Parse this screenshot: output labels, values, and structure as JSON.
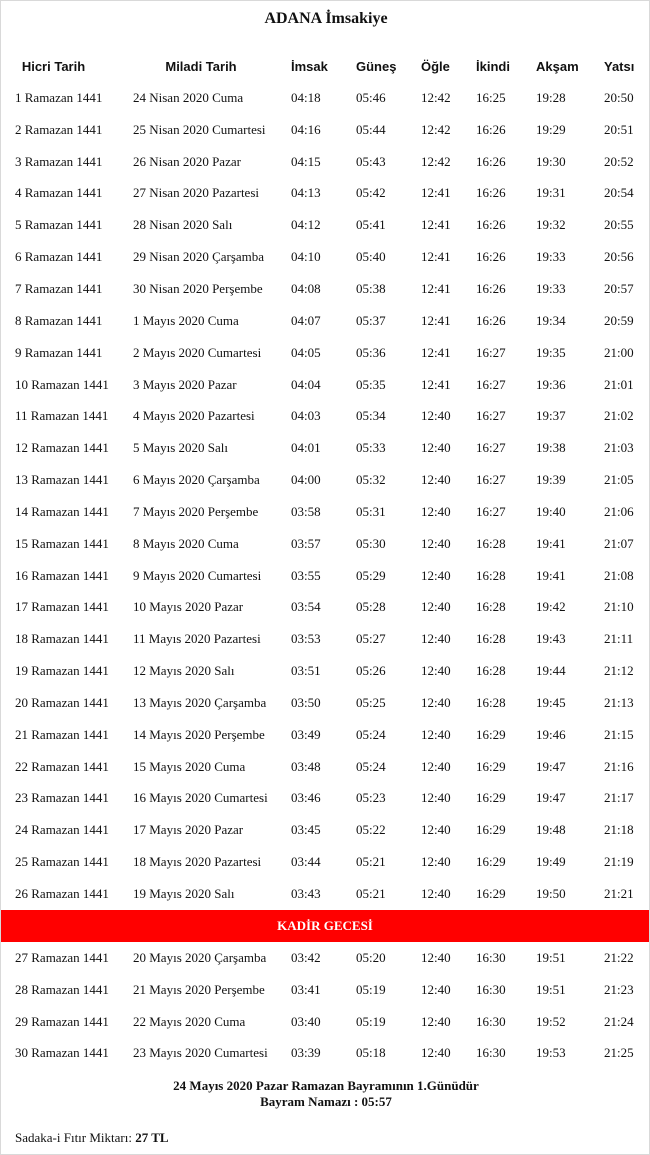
{
  "title": "ADANA İmsakiye",
  "headers": [
    "Hicri Tarih",
    "Miladi Tarih",
    "İmsak",
    "Güneş",
    "Öğle",
    "İkindi",
    "Akşam",
    "Yatsı"
  ],
  "rows_before": [
    [
      "1 Ramazan 1441",
      "24 Nisan 2020 Cuma",
      "04:18",
      "05:46",
      "12:42",
      "16:25",
      "19:28",
      "20:50"
    ],
    [
      "2 Ramazan 1441",
      "25 Nisan 2020 Cumartesi",
      "04:16",
      "05:44",
      "12:42",
      "16:26",
      "19:29",
      "20:51"
    ],
    [
      "3 Ramazan 1441",
      "26 Nisan 2020 Pazar",
      "04:15",
      "05:43",
      "12:42",
      "16:26",
      "19:30",
      "20:52"
    ],
    [
      "4 Ramazan 1441",
      "27 Nisan 2020 Pazartesi",
      "04:13",
      "05:42",
      "12:41",
      "16:26",
      "19:31",
      "20:54"
    ],
    [
      "5 Ramazan 1441",
      "28 Nisan 2020 Salı",
      "04:12",
      "05:41",
      "12:41",
      "16:26",
      "19:32",
      "20:55"
    ],
    [
      "6 Ramazan 1441",
      "29 Nisan 2020 Çarşamba",
      "04:10",
      "05:40",
      "12:41",
      "16:26",
      "19:33",
      "20:56"
    ],
    [
      "7 Ramazan 1441",
      "30 Nisan 2020 Perşembe",
      "04:08",
      "05:38",
      "12:41",
      "16:26",
      "19:33",
      "20:57"
    ],
    [
      "8 Ramazan 1441",
      "1 Mayıs 2020 Cuma",
      "04:07",
      "05:37",
      "12:41",
      "16:26",
      "19:34",
      "20:59"
    ],
    [
      "9 Ramazan 1441",
      "2 Mayıs 2020 Cumartesi",
      "04:05",
      "05:36",
      "12:41",
      "16:27",
      "19:35",
      "21:00"
    ],
    [
      "10 Ramazan 1441",
      "3 Mayıs 2020 Pazar",
      "04:04",
      "05:35",
      "12:41",
      "16:27",
      "19:36",
      "21:01"
    ],
    [
      "11 Ramazan 1441",
      "4 Mayıs 2020 Pazartesi",
      "04:03",
      "05:34",
      "12:40",
      "16:27",
      "19:37",
      "21:02"
    ],
    [
      "12 Ramazan 1441",
      "5 Mayıs 2020 Salı",
      "04:01",
      "05:33",
      "12:40",
      "16:27",
      "19:38",
      "21:03"
    ],
    [
      "13 Ramazan 1441",
      "6 Mayıs 2020 Çarşamba",
      "04:00",
      "05:32",
      "12:40",
      "16:27",
      "19:39",
      "21:05"
    ],
    [
      "14 Ramazan 1441",
      "7 Mayıs 2020 Perşembe",
      "03:58",
      "05:31",
      "12:40",
      "16:27",
      "19:40",
      "21:06"
    ],
    [
      "15 Ramazan 1441",
      "8 Mayıs 2020 Cuma",
      "03:57",
      "05:30",
      "12:40",
      "16:28",
      "19:41",
      "21:07"
    ],
    [
      "16 Ramazan 1441",
      "9 Mayıs 2020 Cumartesi",
      "03:55",
      "05:29",
      "12:40",
      "16:28",
      "19:41",
      "21:08"
    ],
    [
      "17 Ramazan 1441",
      "10 Mayıs 2020 Pazar",
      "03:54",
      "05:28",
      "12:40",
      "16:28",
      "19:42",
      "21:10"
    ],
    [
      "18 Ramazan 1441",
      "11 Mayıs 2020 Pazartesi",
      "03:53",
      "05:27",
      "12:40",
      "16:28",
      "19:43",
      "21:11"
    ],
    [
      "19 Ramazan 1441",
      "12 Mayıs 2020 Salı",
      "03:51",
      "05:26",
      "12:40",
      "16:28",
      "19:44",
      "21:12"
    ],
    [
      "20 Ramazan 1441",
      "13 Mayıs 2020 Çarşamba",
      "03:50",
      "05:25",
      "12:40",
      "16:28",
      "19:45",
      "21:13"
    ],
    [
      "21 Ramazan 1441",
      "14 Mayıs 2020 Perşembe",
      "03:49",
      "05:24",
      "12:40",
      "16:29",
      "19:46",
      "21:15"
    ],
    [
      "22 Ramazan 1441",
      "15 Mayıs 2020 Cuma",
      "03:48",
      "05:24",
      "12:40",
      "16:29",
      "19:47",
      "21:16"
    ],
    [
      "23 Ramazan 1441",
      "16 Mayıs 2020 Cumartesi",
      "03:46",
      "05:23",
      "12:40",
      "16:29",
      "19:47",
      "21:17"
    ],
    [
      "24 Ramazan 1441",
      "17 Mayıs 2020 Pazar",
      "03:45",
      "05:22",
      "12:40",
      "16:29",
      "19:48",
      "21:18"
    ],
    [
      "25 Ramazan 1441",
      "18 Mayıs 2020 Pazartesi",
      "03:44",
      "05:21",
      "12:40",
      "16:29",
      "19:49",
      "21:19"
    ],
    [
      "26 Ramazan 1441",
      "19 Mayıs 2020 Salı",
      "03:43",
      "05:21",
      "12:40",
      "16:29",
      "19:50",
      "21:21"
    ]
  ],
  "kadir_label": "KADİR GECESİ",
  "kadir_color": "#ff0000",
  "rows_after": [
    [
      "27 Ramazan 1441",
      "20 Mayıs 2020 Çarşamba",
      "03:42",
      "05:20",
      "12:40",
      "16:30",
      "19:51",
      "21:22"
    ],
    [
      "28 Ramazan 1441",
      "21 Mayıs 2020 Perşembe",
      "03:41",
      "05:19",
      "12:40",
      "16:30",
      "19:51",
      "21:23"
    ],
    [
      "29 Ramazan 1441",
      "22 Mayıs 2020 Cuma",
      "03:40",
      "05:19",
      "12:40",
      "16:30",
      "19:52",
      "21:24"
    ],
    [
      "30 Ramazan 1441",
      "23 Mayıs 2020 Cumartesi",
      "03:39",
      "05:18",
      "12:40",
      "16:30",
      "19:53",
      "21:25"
    ]
  ],
  "footer": {
    "bayram_line": "24 Mayıs 2020 Pazar Ramazan Bayramının 1.Günüdür",
    "namaz_line": "Bayram Namazı : 05:57",
    "fitre_label": "Sadaka-i Fıtır Miktarı: ",
    "fitre_value": "27 TL"
  }
}
